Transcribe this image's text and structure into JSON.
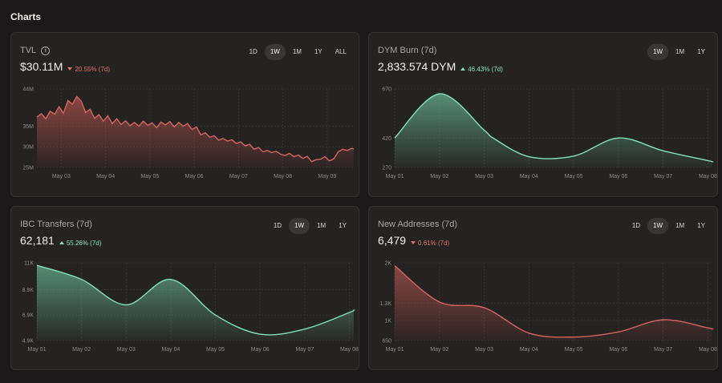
{
  "section_title": "Charts",
  "cards": [
    {
      "title": "TVL",
      "has_info": true,
      "value": "$30.11M",
      "change": "20.55% (7d)",
      "direction": "down",
      "tabs": [
        "1D",
        "1W",
        "1M",
        "1Y",
        "ALL"
      ],
      "active_tab": "1W"
    },
    {
      "title": "DYM Burn (7d)",
      "has_info": false,
      "value": "2,833.574 DYM",
      "change": "46.43% (7d)",
      "direction": "up",
      "tabs": [
        "1W",
        "1M",
        "1Y"
      ],
      "active_tab": "1W"
    },
    {
      "title": "IBC Transfers (7d)",
      "has_info": false,
      "value": "62,181",
      "change": "55.26% (7d)",
      "direction": "up",
      "tabs": [
        "1D",
        "1W",
        "1M",
        "1Y"
      ],
      "active_tab": "1W"
    },
    {
      "title": "New Addresses (7d)",
      "has_info": false,
      "value": "6,479",
      "change": "0.61% (7d)",
      "direction": "down",
      "tabs": [
        "1D",
        "1W",
        "1M",
        "1Y"
      ],
      "active_tab": "1W"
    }
  ],
  "colors": {
    "red": "#d9645c",
    "green": "#7fe3b8"
  },
  "chart_data": [
    {
      "type": "area",
      "title": "TVL",
      "color": "red",
      "smooth": false,
      "categories": [
        "May 03",
        "May 04",
        "May 05",
        "May 06",
        "May 07",
        "May 08",
        "May 09"
      ],
      "x_domain": [
        -0.55,
        6.6
      ],
      "y_ticks": [
        {
          "v": 25,
          "label": "25M"
        },
        {
          "v": 30,
          "label": "30M"
        },
        {
          "v": 35,
          "label": "35M"
        },
        {
          "v": 44,
          "label": "44M"
        }
      ],
      "ylim": [
        25,
        44
      ],
      "x": [
        -0.55,
        -0.45,
        -0.35,
        -0.25,
        -0.15,
        -0.05,
        0.05,
        0.15,
        0.25,
        0.35,
        0.45,
        0.55,
        0.65,
        0.75,
        0.85,
        0.95,
        1.05,
        1.15,
        1.25,
        1.35,
        1.45,
        1.55,
        1.65,
        1.75,
        1.85,
        1.95,
        2.05,
        2.15,
        2.25,
        2.35,
        2.45,
        2.55,
        2.65,
        2.75,
        2.85,
        2.95,
        3.05,
        3.15,
        3.25,
        3.35,
        3.45,
        3.55,
        3.65,
        3.75,
        3.85,
        3.95,
        4.05,
        4.15,
        4.25,
        4.35,
        4.45,
        4.55,
        4.65,
        4.75,
        4.85,
        4.95,
        5.05,
        5.15,
        5.25,
        5.35,
        5.45,
        5.55,
        5.65,
        5.75,
        5.85,
        5.95,
        6.05,
        6.15,
        6.25,
        6.35,
        6.45,
        6.55,
        6.6
      ],
      "values": [
        37.2,
        38.0,
        36.8,
        38.6,
        37.9,
        39.7,
        38.1,
        41.2,
        40.3,
        42.2,
        41.0,
        38.3,
        39.1,
        36.9,
        37.8,
        36.2,
        37.5,
        35.6,
        36.8,
        35.4,
        36.3,
        35.1,
        35.9,
        35.0,
        36.2,
        35.2,
        35.8,
        34.6,
        36.0,
        35.3,
        36.1,
        34.8,
        35.9,
        35.0,
        35.6,
        34.2,
        34.8,
        32.9,
        33.4,
        32.3,
        32.7,
        31.6,
        32.0,
        31.4,
        31.7,
        30.8,
        31.2,
        30.2,
        30.6,
        29.4,
        29.8,
        28.8,
        29.1,
        28.6,
        28.9,
        28.2,
        27.9,
        28.4,
        27.6,
        28.0,
        27.2,
        27.7,
        26.4,
        26.9,
        27.0,
        27.6,
        26.6,
        27.1,
        28.8,
        29.4,
        29.1,
        29.6,
        29.5
      ]
    },
    {
      "type": "area",
      "title": "DYM Burn (7d)",
      "color": "green",
      "smooth": true,
      "categories": [
        "May 01",
        "May 02",
        "May 03",
        "May 04",
        "May 05",
        "May 06",
        "May 07",
        "May 08"
      ],
      "x_domain": [
        0,
        7.1
      ],
      "y_ticks": [
        {
          "v": 270,
          "label": "270"
        },
        {
          "v": 420,
          "label": "420"
        },
        {
          "v": 670,
          "label": "670"
        }
      ],
      "ylim": [
        270,
        670
      ],
      "x": [
        0,
        1,
        2,
        2.2,
        3,
        4,
        5,
        6,
        7,
        7.1
      ],
      "values": [
        420,
        645,
        460,
        420,
        325,
        328,
        420,
        355,
        305,
        298
      ]
    },
    {
      "type": "area",
      "title": "IBC Transfers (7d)",
      "color": "green",
      "smooth": true,
      "categories": [
        "May 01",
        "May 02",
        "May 03",
        "May 04",
        "May 05",
        "May 06",
        "May 07",
        "May 08"
      ],
      "x_domain": [
        0,
        7.1
      ],
      "y_ticks": [
        {
          "v": 4.9,
          "label": "4.9K"
        },
        {
          "v": 6.9,
          "label": "6.9K"
        },
        {
          "v": 8.9,
          "label": "8.9K"
        },
        {
          "v": 11,
          "label": "11K"
        }
      ],
      "ylim": [
        4.9,
        11
      ],
      "x": [
        0,
        1,
        2,
        3,
        4,
        5,
        6,
        7,
        7.1
      ],
      "values": [
        10.8,
        9.7,
        7.7,
        9.7,
        6.9,
        5.4,
        5.8,
        7.1,
        7.3
      ]
    },
    {
      "type": "area",
      "title": "New Addresses (7d)",
      "color": "red",
      "smooth": true,
      "categories": [
        "May 01",
        "May 02",
        "May 03",
        "May 04",
        "May 05",
        "May 06",
        "May 07",
        "May 08"
      ],
      "x_domain": [
        0,
        7.1
      ],
      "y_ticks": [
        {
          "v": 650,
          "label": "650"
        },
        {
          "v": 1000,
          "label": "1K"
        },
        {
          "v": 1300,
          "label": "1.3K"
        },
        {
          "v": 2000,
          "label": "2K"
        }
      ],
      "ylim": [
        650,
        2000
      ],
      "x": [
        0,
        1,
        2,
        3,
        4,
        5,
        6,
        7,
        7.1
      ],
      "values": [
        1950,
        1320,
        1220,
        780,
        710,
        800,
        1010,
        870,
        850
      ]
    }
  ]
}
